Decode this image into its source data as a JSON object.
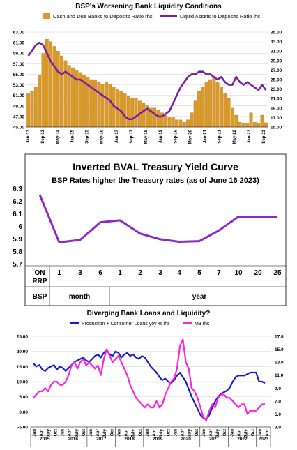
{
  "chart_data": [
    {
      "type": "bar+line",
      "title": "BSP's Worsening Bank Liquidity Conditions",
      "series": [
        {
          "name": "Cash and Due Banks to Deposits Ratio rhs",
          "kind": "bar",
          "axis": "right",
          "color": "#d99a2b",
          "values": [
            22.0,
            22.5,
            23.5,
            26.0,
            30.5,
            33.5,
            33.0,
            32.0,
            31.0,
            30.0,
            29.0,
            28.0,
            27.5,
            27.0,
            26.5,
            26.0,
            25.5,
            25.0,
            25.0,
            24.5,
            24.0,
            24.5,
            24.0,
            23.5,
            23.0,
            22.5,
            22.0,
            21.5,
            21.0,
            21.0,
            20.5,
            20.0,
            19.5,
            19.0,
            19.0,
            18.5,
            18.0,
            17.5,
            17.0,
            17.0,
            16.5,
            16.5,
            16.0,
            16.5,
            18.0,
            20.5,
            22.5,
            23.5,
            24.5,
            25.0,
            25.5,
            24.5,
            23.5,
            22.0,
            21.0,
            19.0,
            17.5,
            16.0,
            15.8,
            15.8,
            18.0,
            16.0,
            15.8,
            17.5,
            15.9
          ]
        },
        {
          "name": "Liquid Assets to Deposits Ratio lhs",
          "kind": "line",
          "axis": "left",
          "color": "#7a1fa2",
          "values": [
            58.5,
            59.5,
            60.5,
            61.0,
            60.5,
            59.0,
            57.5,
            56.5,
            55.5,
            55.0,
            55.5,
            55.0,
            54.5,
            54.0,
            54.0,
            53.5,
            53.0,
            52.5,
            52.0,
            51.5,
            51.0,
            50.5,
            50.0,
            49.0,
            48.5,
            48.0,
            47.0,
            46.5,
            46.5,
            47.0,
            47.5,
            48.0,
            48.5,
            48.0,
            47.5,
            47.0,
            47.0,
            47.5,
            48.0,
            49.5,
            51.0,
            52.5,
            53.5,
            54.5,
            55.0,
            55.0,
            55.5,
            55.5,
            55.0,
            55.0,
            54.5,
            54.0,
            54.5,
            53.5,
            53.0,
            53.0,
            54.5,
            53.5,
            53.0,
            53.5,
            53.0,
            52.5,
            52.0,
            53.0,
            52.0
          ]
        }
      ],
      "x_ticks": [
        "Jan-13",
        "Sep-13",
        "May-14",
        "Jan-15",
        "Sep-15",
        "May-16",
        "Jan-17",
        "Sep-17",
        "May-18",
        "Jan-19",
        "Sep-19",
        "May-20",
        "Jan-21",
        "Sep-21",
        "May-22",
        "Jan-23",
        "Sep-23"
      ],
      "y_left": {
        "min": 45,
        "max": 63,
        "ticks": [
          "45.00",
          "47.00",
          "49.00",
          "51.00",
          "53.00",
          "55.00",
          "57.00",
          "59.00",
          "61.00",
          "63.00"
        ]
      },
      "y_right": {
        "min": 15,
        "max": 35,
        "ticks": [
          "15.00",
          "17.00",
          "19.00",
          "21.00",
          "23.00",
          "25.00",
          "27.00",
          "29.00",
          "31.00",
          "33.00",
          "35.00"
        ]
      }
    },
    {
      "type": "line",
      "title": "Inverted BVAL Treasury Yield Curve",
      "subtitle": "BSP Rates higher the Treasury rates (as of June 16 2023)",
      "color": "#8a2bc4",
      "tenors": [
        "ON RRP BSP",
        "1",
        "3",
        "6",
        "1",
        "2",
        "3",
        "4",
        "5",
        "7",
        "10",
        "20",
        "25"
      ],
      "values": [
        6.25,
        5.87,
        5.89,
        6.03,
        6.045,
        5.94,
        5.895,
        5.875,
        5.88,
        5.965,
        6.075,
        6.07,
        6.07
      ],
      "row1": [
        "ON",
        "1",
        "3",
        "6",
        "1",
        "2",
        "3",
        "4",
        "5",
        "7",
        "10",
        "20",
        "25"
      ],
      "row1b": "RRP",
      "row2": [
        "BSP",
        "month",
        "year"
      ],
      "y_ticks": [
        "5.7",
        "5.8",
        "5.9",
        "6",
        "6.1",
        "6.2",
        "6.3"
      ],
      "ylim": [
        5.7,
        6.3
      ]
    },
    {
      "type": "line",
      "title": "Diverging Bank Loans and Liquidity?",
      "series": [
        {
          "name": "Production + Consumer Loans yoy % lhs",
          "axis": "left",
          "color": "#1a1ac8",
          "values": [
            16.0,
            15.0,
            15.5,
            14.0,
            13.5,
            14.5,
            15.0,
            15.5,
            14.0,
            15.0,
            14.5,
            13.5,
            14.5,
            15.5,
            16.5,
            17.0,
            17.5,
            18.0,
            17.0,
            16.5,
            17.5,
            18.5,
            19.0,
            18.0,
            19.5,
            20.5,
            19.0,
            18.5,
            20.0,
            19.5,
            18.0,
            19.0,
            19.5,
            18.5,
            19.0,
            18.0,
            17.5,
            18.5,
            18.0,
            16.5,
            15.0,
            14.0,
            13.0,
            11.5,
            10.5,
            11.0,
            10.0,
            9.5,
            10.5,
            12.0,
            13.0,
            11.5,
            10.0,
            7.5,
            5.0,
            3.0,
            1.0,
            -1.0,
            -2.0,
            -2.5,
            -1.0,
            1.5,
            3.5,
            5.0,
            6.0,
            6.5,
            7.0,
            8.0,
            10.0,
            11.5,
            12.0,
            12.0,
            12.0,
            12.5,
            13.0,
            13.0,
            13.0,
            10.0,
            10.0,
            9.5
          ]
        },
        {
          "name": "M3 rhs",
          "axis": "right",
          "color": "#ff22dd",
          "values": [
            7.5,
            8.0,
            8.5,
            8.5,
            9.0,
            8.5,
            9.5,
            10.0,
            10.0,
            9.5,
            9.5,
            10.0,
            11.0,
            12.5,
            13.0,
            12.0,
            13.0,
            13.5,
            12.5,
            13.0,
            12.5,
            12.0,
            12.5,
            11.0,
            13.5,
            15.0,
            14.0,
            13.0,
            13.5,
            14.0,
            13.0,
            12.0,
            11.0,
            9.5,
            8.5,
            7.5,
            7.0,
            6.5,
            6.0,
            6.5,
            6.0,
            6.0,
            7.0,
            6.0,
            6.5,
            8.0,
            9.0,
            10.0,
            10.5,
            12.0,
            15.5,
            16.5,
            13.0,
            12.0,
            9.0,
            8.5,
            7.5,
            6.0,
            4.5,
            4.0,
            5.5,
            6.5,
            6.0,
            7.5,
            8.0,
            8.0,
            7.5,
            7.5,
            7.0,
            6.5,
            6.0,
            6.5,
            6.5,
            5.0,
            5.5,
            5.5,
            5.5,
            6.0,
            6.5,
            6.5
          ]
        }
      ],
      "months": [
        "Jan",
        "Apr",
        "July",
        "Oct",
        "Jan",
        "Apr",
        "July",
        "Oct",
        "Jan",
        "Apr",
        "July",
        "Oct",
        "Jan",
        "Apr",
        "July",
        "Oct",
        "Jan",
        "Apr",
        "July",
        "Oct",
        "Jan",
        "Apr",
        "July",
        "Oct",
        "Jan",
        "Apr",
        "July",
        "Oct",
        "Jan",
        "Apr",
        "July",
        "Oct",
        "Jan",
        "Apr"
      ],
      "years": [
        "2015",
        "2016",
        "2017",
        "2018",
        "2019",
        "2020",
        "2021",
        "2022",
        "2023"
      ],
      "y_left": {
        "min": -5,
        "max": 25,
        "ticks": [
          "-5.00",
          "0.00",
          "5.00",
          "10.00",
          "15.00",
          "20.00",
          "25.00"
        ]
      },
      "y_right": {
        "min": 3,
        "max": 17,
        "ticks": [
          "3.0",
          "5.0",
          "7.0",
          "9.0",
          "11.0",
          "13.0",
          "15.0",
          "17.0"
        ]
      }
    }
  ]
}
